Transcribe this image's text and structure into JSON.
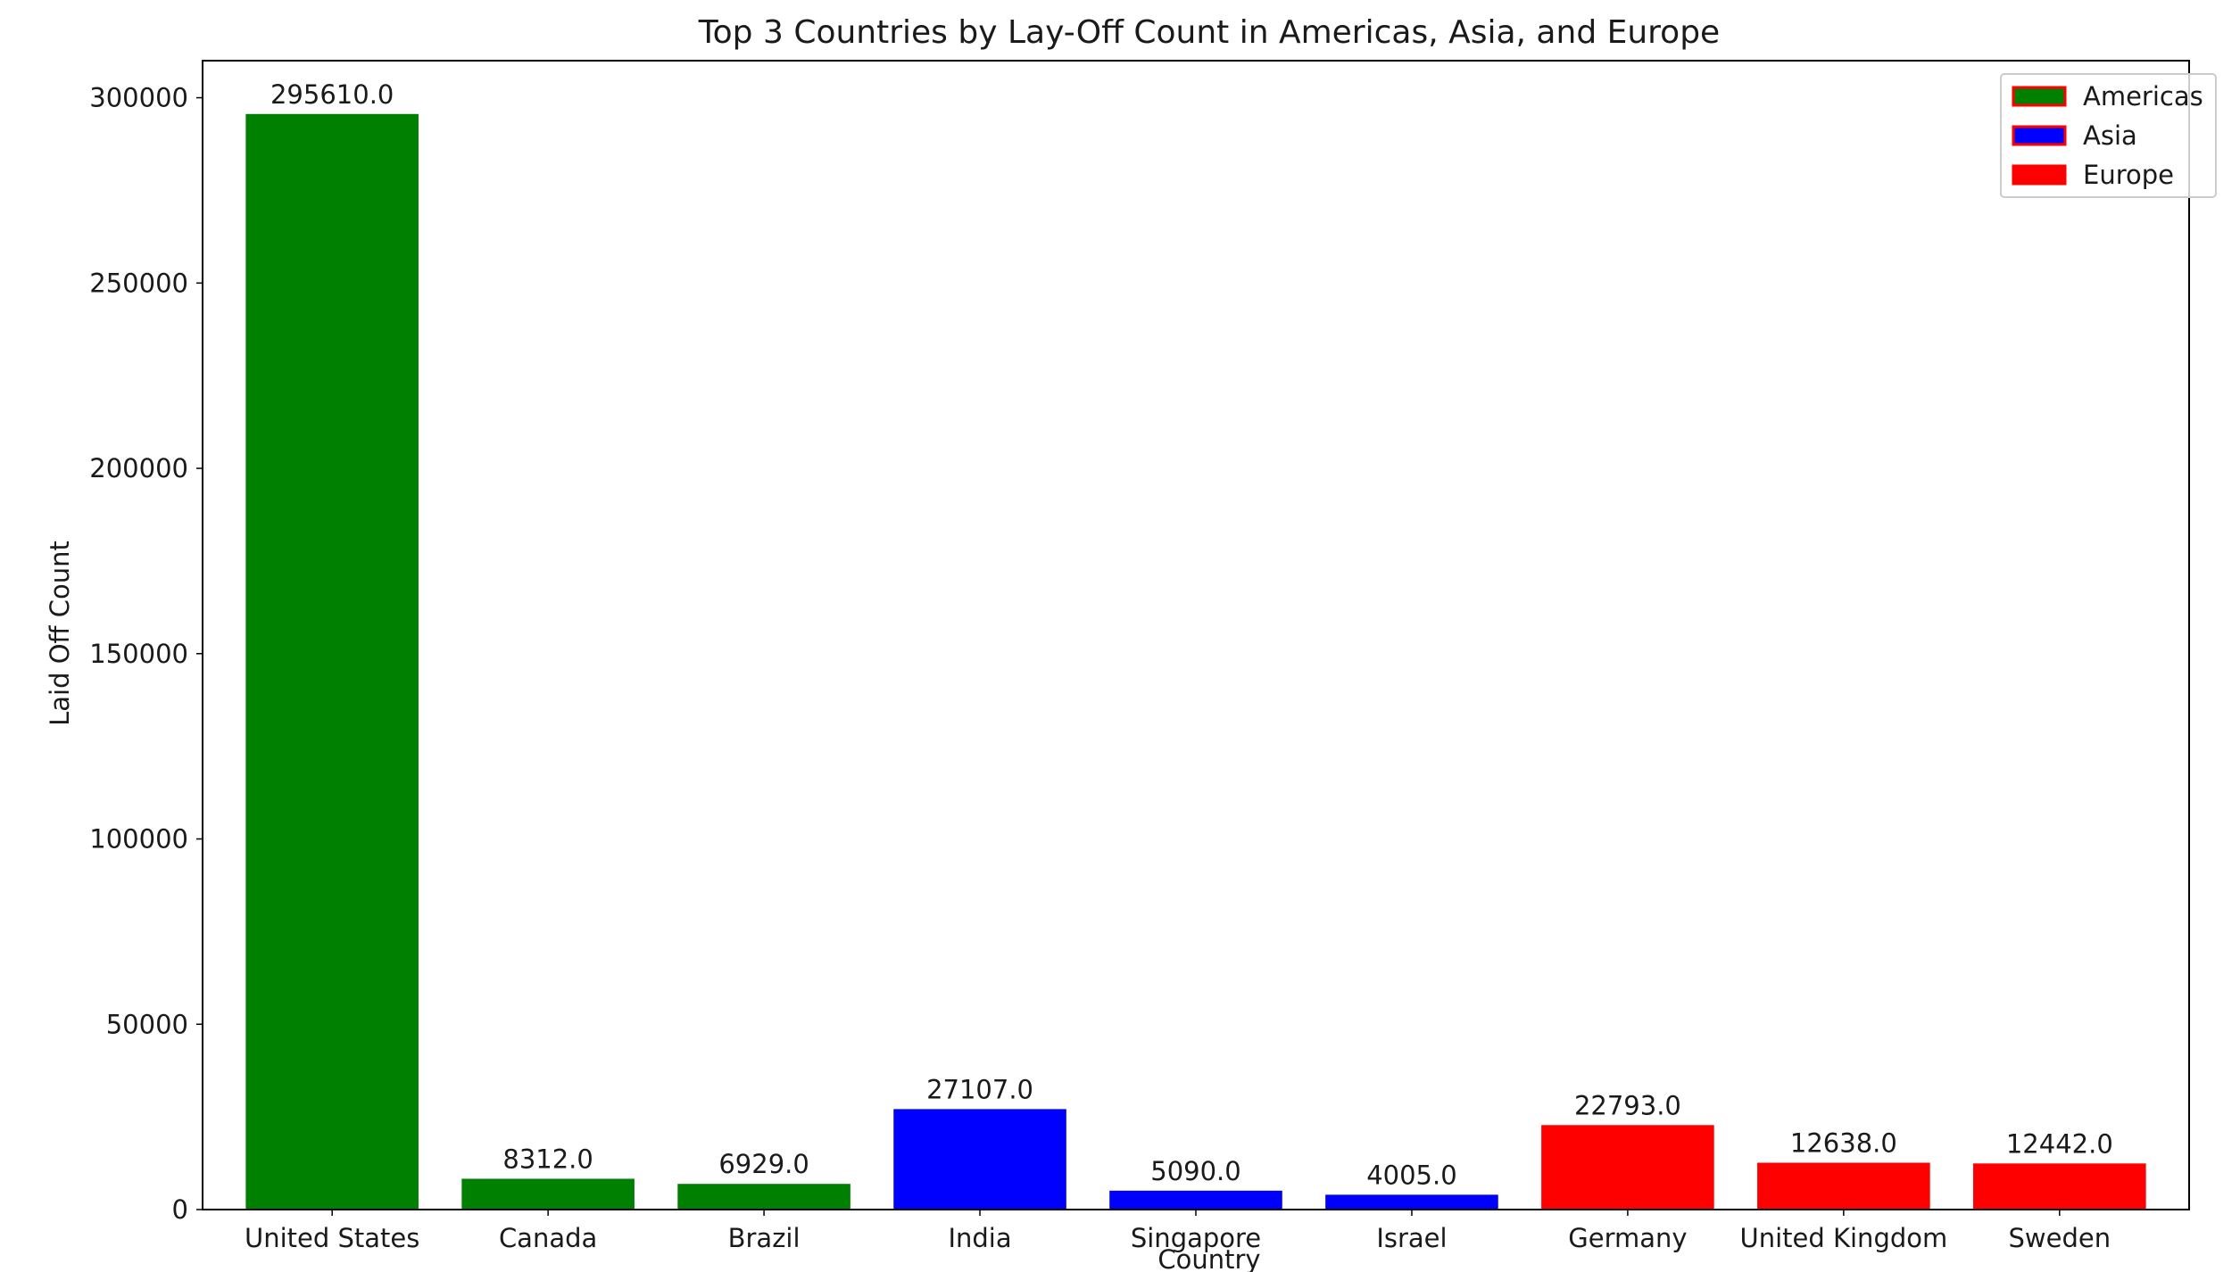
{
  "chart_data": {
    "type": "bar",
    "title": "Top 3 Countries by Lay-Off Count in Americas, Asia, and Europe",
    "xlabel": "Country",
    "ylabel": "Laid Off Count",
    "ylim": [
      0,
      310000
    ],
    "yticks": [
      0,
      50000,
      100000,
      150000,
      200000,
      250000,
      300000
    ],
    "ytick_labels": [
      "0",
      "50000",
      "100000",
      "150000",
      "200000",
      "250000",
      "300000"
    ],
    "grid": false,
    "legend_position": "top-right",
    "categories": [
      "United States",
      "Canada",
      "Brazil",
      "India",
      "Singapore",
      "Israel",
      "Germany",
      "United Kingdom",
      "Sweden"
    ],
    "values": [
      295610.0,
      8312.0,
      6929.0,
      27107.0,
      5090.0,
      4005.0,
      22793.0,
      12638.0,
      12442.0
    ],
    "value_labels": [
      "295610.0",
      "8312.0",
      "6929.0",
      "27107.0",
      "5090.0",
      "4005.0",
      "22793.0",
      "12638.0",
      "12442.0"
    ],
    "groups": [
      "Americas",
      "Americas",
      "Americas",
      "Asia",
      "Asia",
      "Asia",
      "Europe",
      "Europe",
      "Europe"
    ],
    "legend": [
      {
        "name": "Americas",
        "color": "#008000",
        "edge": "#ff0000"
      },
      {
        "name": "Asia",
        "color": "#0000ff",
        "edge": "#ff0000"
      },
      {
        "name": "Europe",
        "color": "#ff0000",
        "edge": "#ff0000"
      }
    ]
  }
}
